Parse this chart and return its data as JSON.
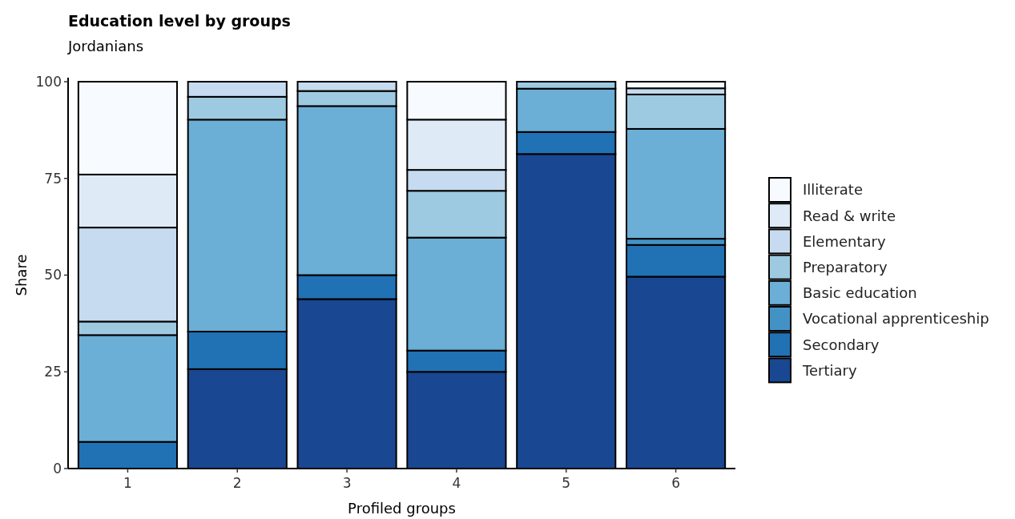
{
  "chart_data": {
    "type": "bar",
    "title": "Education level by groups",
    "subtitle": "Jordanians",
    "xlabel": "Profiled groups",
    "ylabel": "Share",
    "categories": [
      "1",
      "2",
      "3",
      "4",
      "5",
      "6"
    ],
    "stacked": true,
    "legend": "right",
    "ylim": [
      0,
      100
    ],
    "yticks": [
      0,
      25,
      50,
      75,
      100
    ],
    "grid": false,
    "series": [
      {
        "name": "Tertiary",
        "color": "#1a4791",
        "values": [
          0,
          25.7,
          43.8,
          25.0,
          81.3,
          49.6
        ]
      },
      {
        "name": "Secondary",
        "color": "#2171b5",
        "values": [
          6.9,
          9.7,
          6.2,
          5.5,
          5.7,
          8.2
        ]
      },
      {
        "name": "Vocational apprenticeship",
        "color": "#4292c6",
        "values": [
          0,
          0,
          0,
          0,
          0,
          1.6
        ]
      },
      {
        "name": "Basic education",
        "color": "#6baed6",
        "values": [
          27.6,
          54.8,
          43.7,
          29.2,
          11.2,
          28.4
        ]
      },
      {
        "name": "Preparatory",
        "color": "#9ecae1",
        "values": [
          3.5,
          5.9,
          3.9,
          12.1,
          1.8,
          8.9
        ]
      },
      {
        "name": "Elementary",
        "color": "#c6dbef",
        "values": [
          24.3,
          3.9,
          2.4,
          5.4,
          0,
          1.6
        ]
      },
      {
        "name": "Read & write",
        "color": "#deebf7",
        "values": [
          13.7,
          0,
          0,
          13.0,
          0,
          0
        ]
      },
      {
        "name": "Illiterate",
        "color": "#f7fbff",
        "values": [
          24.0,
          0,
          0,
          9.8,
          0,
          1.7
        ]
      }
    ]
  }
}
